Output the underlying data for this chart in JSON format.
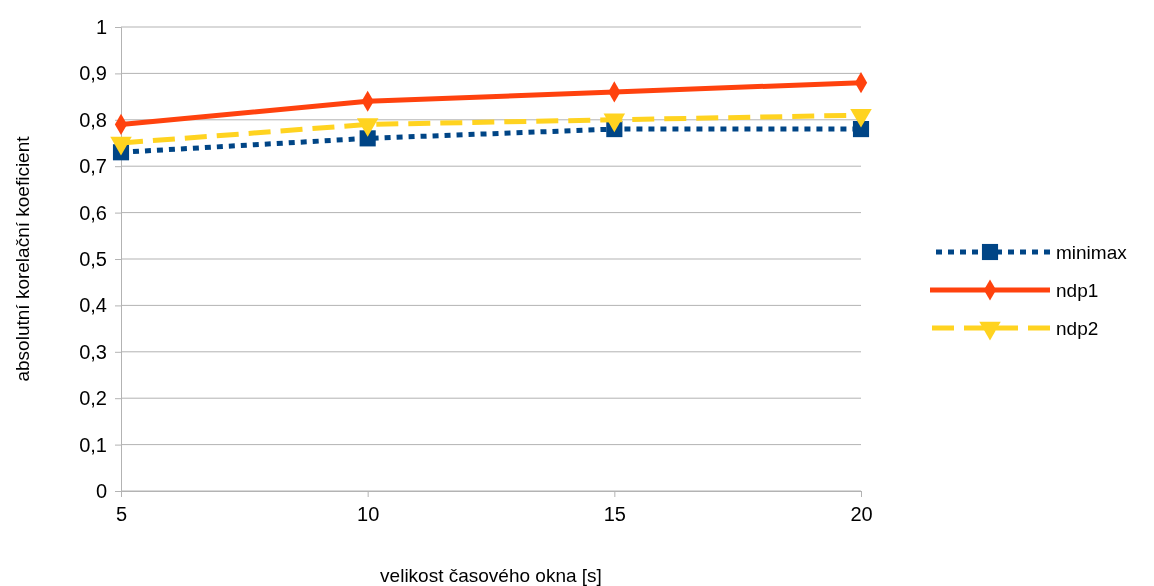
{
  "chart_data": {
    "type": "line",
    "xlabel": "velikost časového okna [s]",
    "ylabel": "absolutní korelační koeficient",
    "x": [
      5,
      10,
      15,
      20
    ],
    "xlim": [
      5,
      20
    ],
    "xticks": [
      5,
      10,
      15,
      20
    ],
    "ylim": [
      0,
      1
    ],
    "yticks": [
      {
        "value": 0,
        "label": "0"
      },
      {
        "value": 0.1,
        "label": "0,1"
      },
      {
        "value": 0.2,
        "label": "0,2"
      },
      {
        "value": 0.3,
        "label": "0,3"
      },
      {
        "value": 0.4,
        "label": "0,4"
      },
      {
        "value": 0.5,
        "label": "0,5"
      },
      {
        "value": 0.6,
        "label": "0,6"
      },
      {
        "value": 0.7,
        "label": "0,7"
      },
      {
        "value": 0.8,
        "label": "0,8"
      },
      {
        "value": 0.9,
        "label": "0,9"
      },
      {
        "value": 1,
        "label": "1"
      }
    ],
    "grid": "y",
    "legend": "right",
    "series": [
      {
        "name": "minimax",
        "color": "#004586",
        "marker": "square",
        "line_style": "dotted",
        "values": [
          0.73,
          0.76,
          0.78,
          0.78
        ]
      },
      {
        "name": "ndp1",
        "color": "#ff420e",
        "marker": "diamond",
        "line_style": "solid",
        "values": [
          0.79,
          0.84,
          0.86,
          0.88
        ]
      },
      {
        "name": "ndp2",
        "color": "#ffd320",
        "marker": "triangle",
        "line_style": "dashed",
        "values": [
          0.75,
          0.79,
          0.8,
          0.81
        ]
      }
    ]
  }
}
